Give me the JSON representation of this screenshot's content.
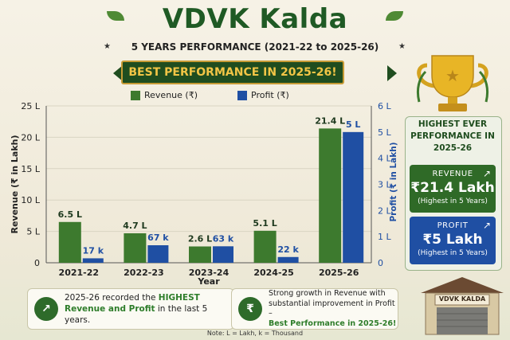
{
  "header": {
    "title": "VDVK Kalda",
    "subtitle": "5 YEARS PERFORMANCE (2021-22 to 2025-26)",
    "banner": "BEST PERFORMANCE IN 2025-26!"
  },
  "colors": {
    "revenue": "#3d7a2e",
    "profit": "#1f4fa3",
    "dark_green": "#1f4d1f",
    "gold": "#f2c546"
  },
  "chart_data": {
    "type": "bar",
    "categories": [
      "2021-22",
      "2022-23",
      "2023-24",
      "2024-25",
      "2025-26"
    ],
    "series": [
      {
        "name": "Revenue (₹)",
        "axis": "left",
        "unit": "Lakh",
        "values": [
          6.5,
          4.7,
          2.6,
          5.1,
          21.4
        ],
        "labels": [
          "6.5 L",
          "4.7 L",
          "2.6 L",
          "5.1 L",
          "21.4 L"
        ]
      },
      {
        "name": "Profit (₹)",
        "axis": "right",
        "unit": "Lakh",
        "values": [
          0.17,
          0.67,
          0.63,
          0.22,
          5
        ],
        "labels": [
          "17 k",
          "67 k",
          "63 k",
          "22 k",
          "5 L"
        ]
      }
    ],
    "xlabel": "Year",
    "ylabel": "Revenue (₹ in Lakh)",
    "y2label": "Profit (₹ in Lakh)",
    "ylim": [
      0,
      25
    ],
    "y2lim": [
      0,
      6
    ],
    "yticks": [
      "0",
      "5 L",
      "10 L",
      "15 L",
      "20 L",
      "25 L"
    ],
    "y2ticks": [
      "0",
      "1 L",
      "2 L",
      "3 L",
      "4 L",
      "5 L",
      "6 L"
    ],
    "legend": "top"
  },
  "side": {
    "heading": "HIGHEST EVER PERFORMANCE IN 2025-26",
    "revenue_card": {
      "label": "REVENUE",
      "value": "₹21.4 Lakh",
      "note": "(Highest in 5 Years)"
    },
    "profit_card": {
      "label": "PROFIT",
      "value": "₹5 Lakh",
      "note": "(Highest in 5 Years)"
    }
  },
  "notes": {
    "left_text_a": "2025-26 recorded the ",
    "left_highlight": "HIGHEST",
    "left_text_b": "Revenue and Profit",
    "left_text_c": " in the last 5 years.",
    "right_text": "Strong growth in Revenue with substantial improvement in Profit –",
    "right_highlight": "Best Performance in 2025-26!",
    "rupee_icon": "₹"
  },
  "building": {
    "sign": "VDVK KALDA"
  },
  "footnote": "Note: L = Lakh, k = Thousand"
}
